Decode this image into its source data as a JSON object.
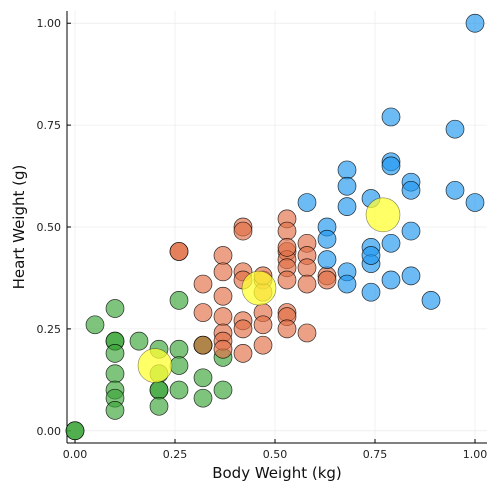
{
  "chart_data": {
    "type": "scatter",
    "title": "",
    "xlabel": "Body Weight (kg)",
    "ylabel": "Heart Weight (g)",
    "xlim": [
      -0.02,
      1.03
    ],
    "ylim": [
      -0.03,
      1.03
    ],
    "xticks": [
      0.0,
      0.25,
      0.5,
      0.75,
      1.0
    ],
    "xtick_labels": [
      "0.00",
      "0.25",
      "0.50",
      "0.75",
      "1.00"
    ],
    "yticks": [
      0.0,
      0.25,
      0.5,
      0.75,
      1.0
    ],
    "ytick_labels": [
      "0.00",
      "0.25",
      "0.50",
      "0.75",
      "1.00"
    ],
    "grid": true,
    "legend": "none",
    "series": [
      {
        "color": "#3aa537",
        "x": [
          0.0,
          0.0,
          0.05,
          0.1,
          0.1,
          0.1,
          0.1,
          0.1,
          0.1,
          0.1,
          0.1,
          0.16,
          0.21,
          0.21,
          0.21,
          0.21,
          0.21,
          0.26,
          0.26,
          0.26,
          0.26,
          0.32,
          0.32,
          0.32,
          0.32,
          0.37,
          0.37
        ],
        "y": [
          0.0,
          0.0,
          0.26,
          0.3,
          0.22,
          0.22,
          0.19,
          0.14,
          0.1,
          0.08,
          0.05,
          0.22,
          0.2,
          0.14,
          0.1,
          0.1,
          0.06,
          0.32,
          0.2,
          0.16,
          0.1,
          0.21,
          0.21,
          0.13,
          0.08,
          0.18,
          0.1
        ]
      },
      {
        "color": "#e26f46",
        "x": [
          0.26,
          0.26,
          0.32,
          0.32,
          0.32,
          0.37,
          0.37,
          0.37,
          0.37,
          0.37,
          0.37,
          0.37,
          0.42,
          0.42,
          0.42,
          0.42,
          0.42,
          0.42,
          0.42,
          0.47,
          0.47,
          0.47,
          0.47,
          0.47,
          0.47,
          0.53,
          0.53,
          0.53,
          0.53,
          0.53,
          0.53,
          0.53,
          0.53,
          0.53,
          0.53,
          0.58,
          0.58,
          0.58,
          0.58,
          0.58,
          0.63,
          0.63
        ],
        "y": [
          0.44,
          0.44,
          0.36,
          0.29,
          0.21,
          0.43,
          0.39,
          0.33,
          0.28,
          0.24,
          0.22,
          0.2,
          0.5,
          0.49,
          0.39,
          0.37,
          0.27,
          0.25,
          0.19,
          0.37,
          0.34,
          0.29,
          0.26,
          0.21,
          0.38,
          0.52,
          0.49,
          0.44,
          0.42,
          0.4,
          0.37,
          0.29,
          0.28,
          0.25,
          0.45,
          0.46,
          0.43,
          0.4,
          0.36,
          0.24,
          0.38,
          0.37
        ]
      },
      {
        "color": "#1f97f0",
        "x": [
          0.58,
          0.63,
          0.63,
          0.63,
          0.68,
          0.68,
          0.68,
          0.68,
          0.68,
          0.74,
          0.74,
          0.74,
          0.74,
          0.74,
          0.79,
          0.79,
          0.79,
          0.79,
          0.79,
          0.84,
          0.84,
          0.84,
          0.84,
          0.89,
          0.95,
          0.95,
          1.0,
          1.0
        ],
        "y": [
          0.56,
          0.5,
          0.47,
          0.42,
          0.64,
          0.6,
          0.55,
          0.39,
          0.36,
          0.57,
          0.45,
          0.41,
          0.34,
          0.43,
          0.77,
          0.66,
          0.65,
          0.46,
          0.37,
          0.61,
          0.59,
          0.49,
          0.38,
          0.32,
          0.74,
          0.59,
          1.0,
          0.56
        ]
      }
    ],
    "centroids": {
      "color": "#ffff33",
      "x": [
        0.2,
        0.46,
        0.77
      ],
      "y": [
        0.16,
        0.35,
        0.53
      ]
    }
  }
}
